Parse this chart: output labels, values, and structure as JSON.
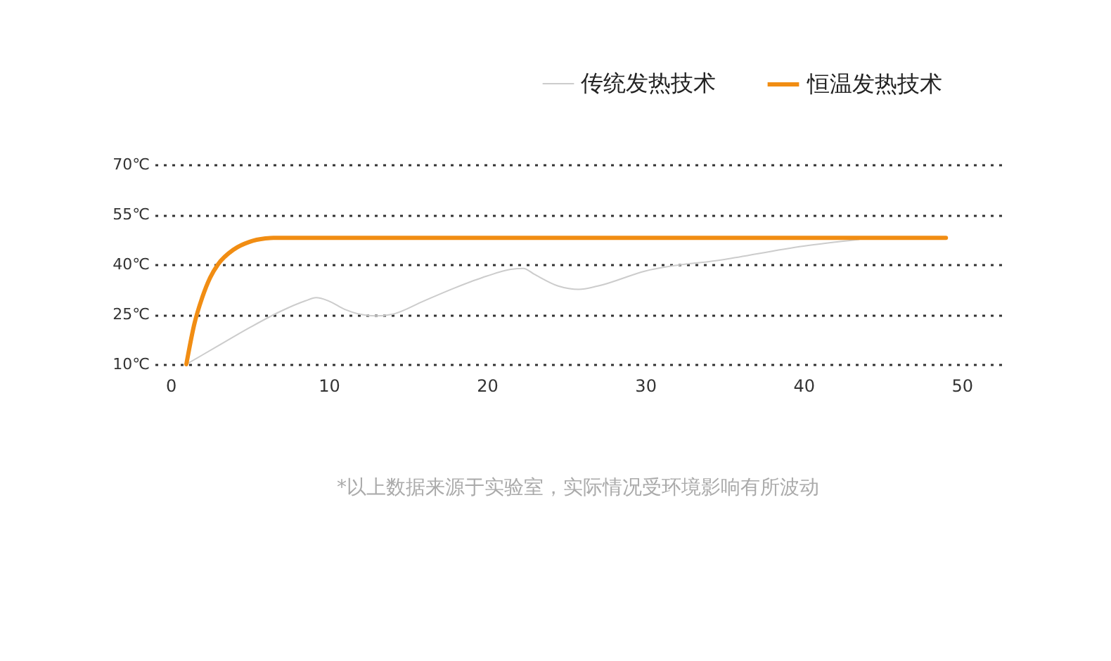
{
  "chart_data": {
    "type": "line",
    "xlim": [
      -1,
      52.5
    ],
    "xticks": [
      0,
      10,
      20,
      30,
      40,
      50
    ],
    "ylim": [
      10,
      70
    ],
    "yticks": [
      {
        "value": 10,
        "label": "10℃"
      },
      {
        "value": 25,
        "label": "25℃"
      },
      {
        "value": 40,
        "label": "40℃"
      },
      {
        "value": 55,
        "label": "55℃"
      },
      {
        "value": 70,
        "label": "70℃"
      }
    ],
    "grid": "y",
    "legend": "top right",
    "line_style": "solid",
    "annotations": [
      "*以上数据来源于实验室，实际情况受环境影响有所波动"
    ],
    "series": [
      {
        "name": "传统发热技术",
        "color": "#cccccc",
        "x": [
          1,
          3,
          5,
          7,
          8.5,
          9.2,
          10,
          11,
          12,
          13,
          14,
          16,
          18,
          20,
          21.5,
          22.3,
          23,
          24.5,
          25.8,
          27,
          30,
          35,
          40,
          43.5
        ],
        "values": [
          10,
          15.5,
          21,
          26,
          29,
          30,
          29,
          26.5,
          25,
          24.5,
          25,
          29,
          33,
          36.5,
          38.5,
          38.8,
          37,
          33.5,
          32.5,
          33.5,
          38,
          41.5,
          45.5,
          47.5
        ]
      },
      {
        "name": "恒温发热技术",
        "color": "#f18d13",
        "x": [
          1,
          1.5,
          2,
          2.5,
          3,
          4,
          5,
          6,
          6.5,
          49
        ],
        "values": [
          10,
          22,
          30,
          36,
          40,
          44.5,
          46.8,
          47.8,
          48,
          48
        ]
      }
    ]
  }
}
